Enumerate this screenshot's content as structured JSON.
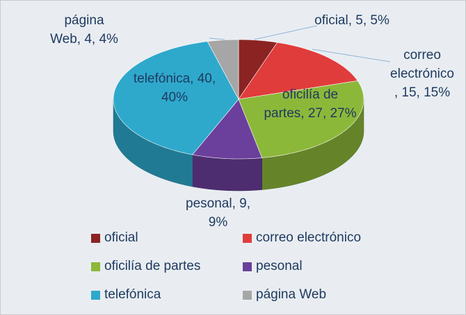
{
  "chart_data": {
    "type": "pie3d",
    "categories": [
      "oficial",
      "correo electrónico",
      "oficilía de partes",
      "pesonal",
      "telefónica",
      "página Web"
    ],
    "values": [
      5,
      15,
      27,
      9,
      40,
      4
    ],
    "value_labels": [
      "oficial, 5, 5%",
      "correo electrónico, 15, 15%",
      "oficilía de partes, 27, 27%",
      "pesonal, 9, 9%",
      "telefónica, 40, 40%",
      "página Web, 4, 4%"
    ],
    "colors": [
      "#8b2323",
      "#e03c3c",
      "#8cb83a",
      "#6b3f9c",
      "#2ea9cc",
      "#a6a6a6"
    ],
    "legend": "bottom"
  }
}
